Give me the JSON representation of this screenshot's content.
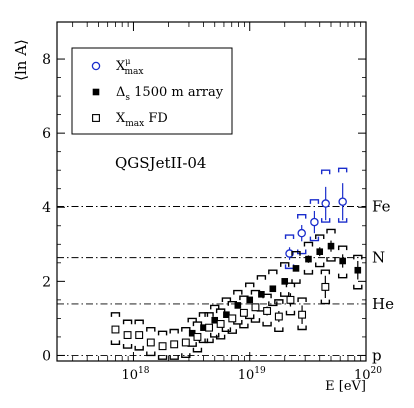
{
  "chart_data": {
    "type": "scatter",
    "title": "",
    "annotation": "QGSJetII-04",
    "ylabel": "⟨ln A⟩",
    "xlabel": "E [eV]",
    "x_scale": "log",
    "xlim": [
      2.2e+17,
      1e+20
    ],
    "ylim": [
      -0.15,
      9.0
    ],
    "x_ticks": [
      {
        "value": 1e+18,
        "base": "10",
        "exp": "18"
      },
      {
        "value": 1e+19,
        "base": "10",
        "exp": "19"
      },
      {
        "value": 1e+20,
        "base": "10",
        "exp": "20"
      }
    ],
    "y_ticks": [
      0,
      2,
      4,
      6,
      8
    ],
    "reference_lines": [
      {
        "label": "Fe",
        "value": 4.02
      },
      {
        "label": "N",
        "value": 2.64
      },
      {
        "label": "He",
        "value": 1.39
      },
      {
        "label": "p",
        "value": 0.0
      }
    ],
    "legend": {
      "placement": "top-left",
      "entries": [
        {
          "marker": "open-circle",
          "text": "X",
          "sup": "μ",
          "sub": "max",
          "color": "#1a2dcc"
        },
        {
          "marker": "filled-square",
          "text": "Δ",
          "sub": "s",
          "tail": " 1500 m array",
          "color": "#000000"
        },
        {
          "marker": "open-square",
          "text": "X",
          "sub": "max",
          "tail": " FD",
          "color": "#000000"
        }
      ]
    },
    "series": [
      {
        "name": "Xμmax",
        "marker": "open-circle",
        "color": "#1a2dcc",
        "points": [
          {
            "x": 2.2e+19,
            "y": 2.75,
            "err": 0.17,
            "sys_lo": 2.35,
            "sys_hi": 3.25
          },
          {
            "x": 2.8e+19,
            "y": 3.3,
            "err": 0.22,
            "sys_lo": 2.75,
            "sys_hi": 3.8
          },
          {
            "x": 3.6e+19,
            "y": 3.6,
            "err": 0.3,
            "sys_lo": 3.1,
            "sys_hi": 4.2
          },
          {
            "x": 4.5e+19,
            "y": 4.1,
            "err": 0.45,
            "sys_lo": 3.6,
            "sys_hi": 5.0
          },
          {
            "x": 6.3e+19,
            "y": 4.15,
            "err": 0.5,
            "sys_lo": 3.6,
            "sys_hi": 5.05
          }
        ]
      },
      {
        "name": "Δs 1500 m array",
        "marker": "filled-square",
        "color": "#000000",
        "points": [
          {
            "x": 3.2e+18,
            "y": 0.6,
            "err": 0.05,
            "sys_lo": 0.25,
            "sys_hi": 1.0
          },
          {
            "x": 4e+18,
            "y": 0.75,
            "err": 0.05,
            "sys_lo": 0.35,
            "sys_hi": 1.15
          },
          {
            "x": 5e+18,
            "y": 0.95,
            "err": 0.05,
            "sys_lo": 0.5,
            "sys_hi": 1.35
          },
          {
            "x": 6.3e+18,
            "y": 1.1,
            "err": 0.05,
            "sys_lo": 0.65,
            "sys_hi": 1.55
          },
          {
            "x": 7.9e+18,
            "y": 1.35,
            "err": 0.05,
            "sys_lo": 0.85,
            "sys_hi": 1.75
          },
          {
            "x": 1e+19,
            "y": 1.5,
            "err": 0.05,
            "sys_lo": 1.0,
            "sys_hi": 1.95
          },
          {
            "x": 1.26e+19,
            "y": 1.65,
            "err": 0.06,
            "sys_lo": 1.2,
            "sys_hi": 2.15
          },
          {
            "x": 1.58e+19,
            "y": 1.8,
            "err": 0.06,
            "sys_lo": 1.35,
            "sys_hi": 2.3
          },
          {
            "x": 2e+19,
            "y": 2.0,
            "err": 0.07,
            "sys_lo": 1.6,
            "sys_hi": 2.5
          },
          {
            "x": 2.5e+19,
            "y": 2.35,
            "err": 0.08,
            "sys_lo": 1.95,
            "sys_hi": 2.8
          },
          {
            "x": 3.2e+19,
            "y": 2.6,
            "err": 0.1,
            "sys_lo": 2.2,
            "sys_hi": 3.05
          },
          {
            "x": 4e+19,
            "y": 2.8,
            "err": 0.12,
            "sys_lo": 2.4,
            "sys_hi": 3.25
          },
          {
            "x": 5e+19,
            "y": 2.95,
            "err": 0.15,
            "sys_lo": 2.55,
            "sys_hi": 3.4
          },
          {
            "x": 6.3e+19,
            "y": 2.55,
            "err": 0.18,
            "sys_lo": 2.1,
            "sys_hi": 2.95
          },
          {
            "x": 8.5e+19,
            "y": 2.3,
            "err": 0.25,
            "sys_lo": 1.8,
            "sys_hi": 2.7
          }
        ]
      },
      {
        "name": "Xmax FD",
        "marker": "open-square",
        "color": "#000000",
        "points": [
          {
            "x": 7e+17,
            "y": 0.7,
            "err": 0.05,
            "sys_lo": 0.3,
            "sys_hi": 1.15
          },
          {
            "x": 8.9e+17,
            "y": 0.55,
            "err": 0.05,
            "sys_lo": 0.2,
            "sys_hi": 0.95
          },
          {
            "x": 1.12e+18,
            "y": 0.55,
            "err": 0.05,
            "sys_lo": 0.15,
            "sys_hi": 0.95
          },
          {
            "x": 1.41e+18,
            "y": 0.35,
            "err": 0.05,
            "sys_lo": 0.0,
            "sys_hi": 0.75
          },
          {
            "x": 1.78e+18,
            "y": 0.25,
            "err": 0.05,
            "sys_lo": -0.1,
            "sys_hi": 0.65
          },
          {
            "x": 2.24e+18,
            "y": 0.3,
            "err": 0.05,
            "sys_lo": -0.1,
            "sys_hi": 0.7
          },
          {
            "x": 2.82e+18,
            "y": 0.35,
            "err": 0.05,
            "sys_lo": -0.05,
            "sys_hi": 0.75
          },
          {
            "x": 3.55e+18,
            "y": 0.5,
            "err": 0.05,
            "sys_lo": 0.1,
            "sys_hi": 0.9
          },
          {
            "x": 4.47e+18,
            "y": 0.75,
            "err": 0.05,
            "sys_lo": 0.35,
            "sys_hi": 1.15
          },
          {
            "x": 5.62e+18,
            "y": 0.85,
            "err": 0.06,
            "sys_lo": 0.45,
            "sys_hi": 1.25
          },
          {
            "x": 7.08e+18,
            "y": 1.0,
            "err": 0.07,
            "sys_lo": 0.6,
            "sys_hi": 1.45
          },
          {
            "x": 8.91e+18,
            "y": 1.15,
            "err": 0.08,
            "sys_lo": 0.75,
            "sys_hi": 1.6
          },
          {
            "x": 1.12e+19,
            "y": 1.3,
            "err": 0.1,
            "sys_lo": 0.9,
            "sys_hi": 1.75
          },
          {
            "x": 1.41e+19,
            "y": 1.2,
            "err": 0.12,
            "sys_lo": 0.8,
            "sys_hi": 1.65
          },
          {
            "x": 1.78e+19,
            "y": 1.05,
            "err": 0.15,
            "sys_lo": 0.65,
            "sys_hi": 1.5
          },
          {
            "x": 2.24e+19,
            "y": 1.5,
            "err": 0.18,
            "sys_lo": 1.1,
            "sys_hi": 1.95
          },
          {
            "x": 2.82e+19,
            "y": 1.1,
            "err": 0.25,
            "sys_lo": 0.7,
            "sys_hi": 1.55
          },
          {
            "x": 4.47e+19,
            "y": 1.85,
            "err": 0.3,
            "sys_lo": 1.4,
            "sys_hi": 2.3
          }
        ]
      }
    ]
  }
}
